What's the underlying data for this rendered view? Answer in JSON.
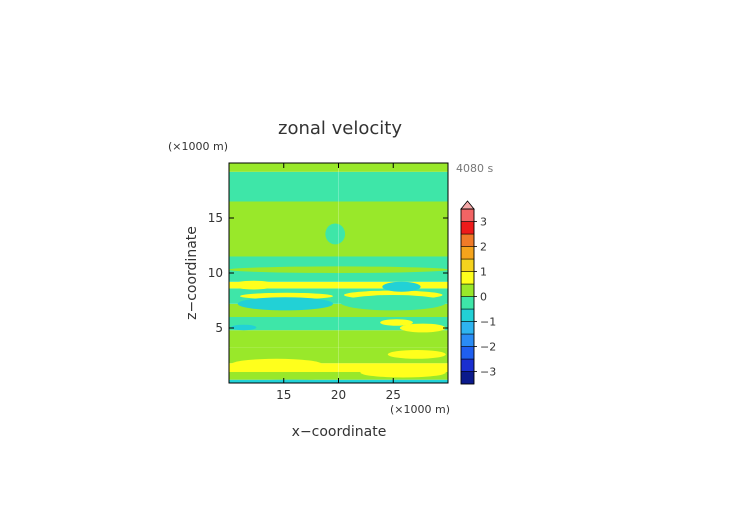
{
  "chart_data": {
    "type": "heatmap",
    "title": "zonal velocity",
    "xlabel": "x−coordinate",
    "ylabel": "z−coordinate",
    "x_unit": "(×1000 m)",
    "y_unit": "(×1000 m)",
    "time_label": "4080 s",
    "xlim": [
      10,
      30
    ],
    "ylim": [
      0,
      20
    ],
    "x_ticks": [
      15,
      20,
      25
    ],
    "y_ticks": [
      5,
      10,
      15
    ],
    "x_tick_labels": [
      "15",
      "20",
      "25"
    ],
    "y_tick_labels": [
      "5",
      "10",
      "15"
    ],
    "colorbar": {
      "levels": [
        -3.5,
        -3,
        -2.5,
        -2,
        -1.5,
        -1,
        -0.5,
        0,
        0.5,
        1,
        1.5,
        2,
        2.5,
        3,
        3.5
      ],
      "colors": [
        "#0b1a8c",
        "#1a2fd0",
        "#1f5ff0",
        "#2a8cf5",
        "#2eb4f0",
        "#22d1d6",
        "#3ee6a8",
        "#99e82a",
        "#ffff1c",
        "#f5d21e",
        "#f5a41c",
        "#f07a28",
        "#ee1a1a",
        "#f26464",
        "#f5a8a8"
      ],
      "tick_values": [
        3,
        2,
        1,
        0,
        -1,
        -2,
        -3
      ],
      "tick_labels": [
        "3",
        "2",
        "1",
        "0",
        "−1",
        "−2",
        "−3"
      ],
      "extend": "max"
    },
    "field_bands": [
      {
        "z_range": [
          0,
          0.3
        ],
        "value": -0.7
      },
      {
        "z_range": [
          0.3,
          1.0
        ],
        "value": 0.2
      },
      {
        "z_range": [
          1.0,
          1.8
        ],
        "value": 0.7
      },
      {
        "z_range": [
          1.8,
          3.2
        ],
        "value": 0.2
      },
      {
        "z_range": [
          3.2,
          4.8
        ],
        "value": 0.2
      },
      {
        "z_range": [
          4.8,
          6.0
        ],
        "value": -0.2
      },
      {
        "z_range": [
          6.0,
          7.2
        ],
        "value": 0.2
      },
      {
        "z_range": [
          7.2,
          8.6
        ],
        "value": -0.4
      },
      {
        "z_range": [
          8.6,
          9.2
        ],
        "value": 0.7
      },
      {
        "z_range": [
          9.2,
          11.5
        ],
        "value": -0.2
      },
      {
        "z_range": [
          11.5,
          16.5
        ],
        "value": 0.2
      },
      {
        "z_range": [
          16.5,
          19.2
        ],
        "value": -0.2
      },
      {
        "z_range": [
          19.2,
          20
        ],
        "value": 0.2
      }
    ],
    "field_features": [
      {
        "x": [
          10.3,
          14.2
        ],
        "z": [
          8.5,
          9.3
        ],
        "value": 0.7
      },
      {
        "x": [
          11.0,
          19.5
        ],
        "z": [
          7.6,
          8.2
        ],
        "value": 0.7
      },
      {
        "x": [
          10.8,
          19.5
        ],
        "z": [
          6.6,
          7.8
        ],
        "value": -0.7
      },
      {
        "x": [
          20.5,
          29.5
        ],
        "z": [
          7.6,
          8.4
        ],
        "value": 0.7
      },
      {
        "x": [
          20.2,
          29.8
        ],
        "z": [
          6.6,
          8.0
        ],
        "value": -0.2
      },
      {
        "x": [
          24.0,
          27.5
        ],
        "z": [
          8.3,
          9.2
        ],
        "value": -0.7
      },
      {
        "x": [
          25.6,
          29.8
        ],
        "z": [
          4.6,
          5.4
        ],
        "value": 0.7
      },
      {
        "x": [
          23.8,
          26.8
        ],
        "z": [
          5.2,
          5.8
        ],
        "value": 0.7
      },
      {
        "x": [
          10.2,
          12.5
        ],
        "z": [
          4.8,
          5.3
        ],
        "value": -0.7
      },
      {
        "x": [
          10.2,
          18.5
        ],
        "z": [
          1.2,
          2.2
        ],
        "value": 0.7
      },
      {
        "x": [
          22.0,
          29.8
        ],
        "z": [
          0.5,
          1.4
        ],
        "value": 0.7
      },
      {
        "x": [
          24.5,
          29.8
        ],
        "z": [
          2.2,
          3.0
        ],
        "value": 0.7
      },
      {
        "x": [
          15.0,
          19.5
        ],
        "z": [
          0.3,
          1.0
        ],
        "value": 0.2
      },
      {
        "x": [
          12.0,
          19.5
        ],
        "z": [
          0,
          0.3
        ],
        "value": -0.7
      },
      {
        "x": [
          18.8,
          20.6
        ],
        "z": [
          12.6,
          14.5
        ],
        "value": -0.2
      },
      {
        "x": [
          10.0,
          30.0
        ],
        "z": [
          10.0,
          10.6
        ],
        "value": 0.2
      }
    ]
  }
}
